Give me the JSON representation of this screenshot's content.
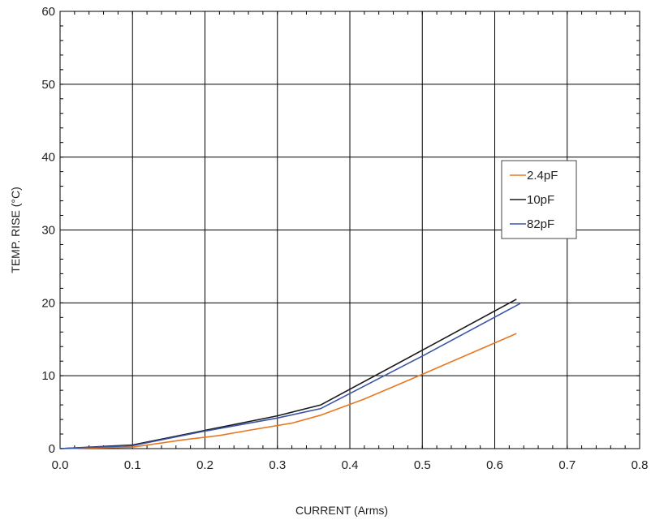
{
  "chart_data": {
    "type": "line",
    "xlabel": "CURRENT (Arms)",
    "ylabel": "TEMP. RISE  (°C)",
    "xlim": [
      0,
      0.8
    ],
    "ylim": [
      0,
      60
    ],
    "x_ticks": [
      0,
      0.1,
      0.2,
      0.3,
      0.4,
      0.5,
      0.6,
      0.7,
      0.8
    ],
    "x_tick_labels": [
      "0.0",
      "0.1",
      "0.2",
      "0.3",
      "0.4",
      "0.5",
      "0.6",
      "0.7",
      "0.8"
    ],
    "y_ticks": [
      0,
      10,
      20,
      30,
      40,
      50,
      60
    ],
    "y_tick_labels": [
      "0",
      "10",
      "20",
      "30",
      "40",
      "50",
      "60"
    ],
    "grid": true,
    "legend_position": "right",
    "series": [
      {
        "name": "2.4pF",
        "color": "#E87722",
        "points": [
          [
            0,
            0
          ],
          [
            0.1,
            0.2
          ],
          [
            0.17,
            1.2
          ],
          [
            0.22,
            1.8
          ],
          [
            0.26,
            2.5
          ],
          [
            0.32,
            3.5
          ],
          [
            0.36,
            4.6
          ],
          [
            0.42,
            6.8
          ],
          [
            0.5,
            10.2
          ],
          [
            0.63,
            15.8
          ]
        ]
      },
      {
        "name": "10pF",
        "color": "#1a1a1a",
        "points": [
          [
            0,
            0
          ],
          [
            0.1,
            0.5
          ],
          [
            0.2,
            2.5
          ],
          [
            0.3,
            4.5
          ],
          [
            0.36,
            6.0
          ],
          [
            0.5,
            13.5
          ],
          [
            0.63,
            20.5
          ]
        ]
      },
      {
        "name": "82pF",
        "color": "#3A55A4",
        "points": [
          [
            0,
            0
          ],
          [
            0.1,
            0.4
          ],
          [
            0.2,
            2.4
          ],
          [
            0.3,
            4.2
          ],
          [
            0.36,
            5.5
          ],
          [
            0.5,
            12.7
          ],
          [
            0.635,
            19.9
          ]
        ]
      }
    ]
  }
}
